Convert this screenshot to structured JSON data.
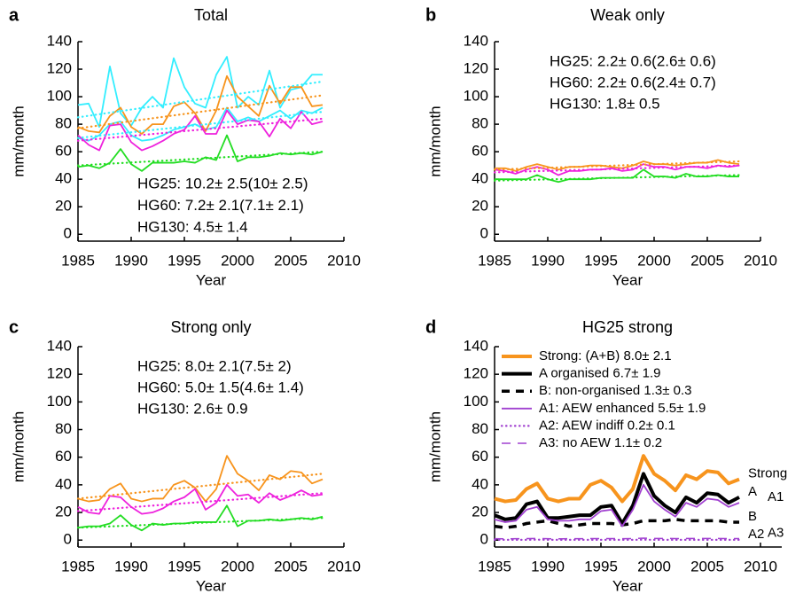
{
  "chart_data": [
    {
      "type": "line",
      "label": "a",
      "title": "Total",
      "xlabel": "Year",
      "ylabel": "mm/month",
      "x": [
        1985,
        1986,
        1987,
        1988,
        1989,
        1990,
        1991,
        1992,
        1993,
        1994,
        1995,
        1996,
        1997,
        1998,
        1999,
        2000,
        2001,
        2002,
        2003,
        2004,
        2005,
        2006,
        2007,
        2008
      ],
      "xlim": [
        1985,
        2010
      ],
      "xticks": [
        1985,
        1990,
        1995,
        2000,
        2005,
        2010
      ],
      "ylim": [
        -5,
        140
      ],
      "yticks": [
        0,
        20,
        40,
        60,
        80,
        100,
        120,
        140
      ],
      "legend_lines": false,
      "series": [
        {
          "color": "#33eeff",
          "style": "solid",
          "values": [
            94,
            95,
            78,
            122,
            88,
            79,
            92,
            100,
            92,
            128,
            107,
            95,
            92,
            116,
            129,
            92,
            100,
            94,
            119,
            92,
            105,
            107,
            116,
            116
          ]
        },
        {
          "color": "#33eeff",
          "style": "solid",
          "values": [
            70,
            68,
            72,
            80,
            82,
            72,
            68,
            69,
            72,
            76,
            78,
            80,
            76,
            78,
            92,
            82,
            85,
            82,
            86,
            90,
            84,
            90,
            88,
            92
          ]
        },
        {
          "name": "HG25: 10.2± 2.5(10± 2.5)",
          "color": "#f7941d",
          "style": "solid",
          "values": [
            78,
            75,
            74,
            86,
            92,
            78,
            73,
            80,
            80,
            93,
            96,
            88,
            75,
            90,
            115,
            100,
            93,
            86,
            108,
            95,
            107,
            107,
            93,
            94
          ]
        },
        {
          "name": "HG60: 7.2± 2.1(7.1± 2.1)",
          "color": "#ee22dd",
          "style": "solid",
          "values": [
            72,
            65,
            61,
            79,
            80,
            67,
            61,
            64,
            68,
            73,
            76,
            86,
            73,
            73,
            90,
            80,
            83,
            82,
            71,
            84,
            77,
            89,
            80,
            82
          ]
        },
        {
          "name": "HG130: 4.5± 1.4",
          "color": "#22dd22",
          "style": "solid",
          "values": [
            49,
            50,
            48,
            52,
            62,
            51,
            46,
            52,
            52,
            52,
            53,
            52,
            56,
            54,
            72,
            53,
            56,
            56,
            57,
            59,
            58,
            59,
            58,
            60
          ]
        },
        {
          "color": "#33eeff",
          "style": "dotted",
          "x": [
            1985,
            2008
          ],
          "values": [
            85,
            111
          ]
        },
        {
          "color": "#33eeff",
          "style": "dotted",
          "x": [
            1985,
            2008
          ],
          "values": [
            70,
            89
          ]
        },
        {
          "color": "#f7941d",
          "style": "dotted",
          "x": [
            1985,
            2008
          ],
          "values": [
            77,
            101
          ]
        },
        {
          "color": "#ee22dd",
          "style": "dotted",
          "x": [
            1985,
            2008
          ],
          "values": [
            68,
            84
          ]
        },
        {
          "color": "#22dd22",
          "style": "dotted",
          "x": [
            1985,
            2008
          ],
          "values": [
            50,
            60
          ]
        }
      ]
    },
    {
      "type": "line",
      "label": "b",
      "title": "Weak only",
      "xlabel": "Year",
      "ylabel": "mm/month",
      "x": [
        1985,
        1986,
        1987,
        1988,
        1989,
        1990,
        1991,
        1992,
        1993,
        1994,
        1995,
        1996,
        1997,
        1998,
        1999,
        2000,
        2001,
        2002,
        2003,
        2004,
        2005,
        2006,
        2007,
        2008
      ],
      "xlim": [
        1985,
        2010
      ],
      "xticks": [
        1985,
        1990,
        1995,
        2000,
        2005,
        2010
      ],
      "ylim": [
        -5,
        140
      ],
      "yticks": [
        0,
        20,
        40,
        60,
        80,
        100,
        120,
        140
      ],
      "legend_lines": false,
      "series": [
        {
          "name": "HG25: 2.2± 0.6(2.6± 0.6)",
          "color": "#f7941d",
          "style": "solid",
          "values": [
            48,
            48,
            46,
            49,
            51,
            49,
            47,
            49,
            49,
            50,
            50,
            49,
            48,
            50,
            53,
            51,
            51,
            50,
            51,
            52,
            52,
            54,
            52,
            51
          ]
        },
        {
          "name": "HG60: 2.2± 0.6(2.4± 0.7)",
          "color": "#ee22dd",
          "style": "solid",
          "values": [
            47,
            46,
            44,
            47,
            49,
            47,
            43,
            46,
            46,
            47,
            47,
            48,
            46,
            47,
            51,
            49,
            49,
            47,
            49,
            49,
            48,
            50,
            49,
            50
          ]
        },
        {
          "name": "HG130: 1.8± 0.5",
          "color": "#22dd22",
          "style": "solid",
          "values": [
            40,
            40,
            40,
            40,
            43,
            40,
            38,
            40,
            40,
            40,
            41,
            41,
            41,
            41,
            47,
            42,
            42,
            41,
            44,
            42,
            42,
            43,
            42,
            42
          ]
        },
        {
          "color": "#f7941d",
          "style": "dotted",
          "x": [
            1985,
            2008
          ],
          "values": [
            47,
            53
          ]
        },
        {
          "color": "#ee22dd",
          "style": "dotted",
          "x": [
            1985,
            2008
          ],
          "values": [
            45,
            50
          ]
        },
        {
          "color": "#22dd22",
          "style": "dotted",
          "x": [
            1985,
            2008
          ],
          "values": [
            39,
            43
          ]
        }
      ]
    },
    {
      "type": "line",
      "label": "c",
      "title": "Strong only",
      "xlabel": "Year",
      "ylabel": "mm/month",
      "x": [
        1985,
        1986,
        1987,
        1988,
        1989,
        1990,
        1991,
        1992,
        1993,
        1994,
        1995,
        1996,
        1997,
        1998,
        1999,
        2000,
        2001,
        2002,
        2003,
        2004,
        2005,
        2006,
        2007,
        2008
      ],
      "xlim": [
        1985,
        2010
      ],
      "xticks": [
        1985,
        1990,
        1995,
        2000,
        2005,
        2010
      ],
      "ylim": [
        -5,
        140
      ],
      "yticks": [
        0,
        20,
        40,
        60,
        80,
        100,
        120,
        140
      ],
      "legend_lines": false,
      "series": [
        {
          "name": "HG25: 8.0± 2.1(7.5± 2)",
          "color": "#f7941d",
          "style": "solid",
          "values": [
            30,
            28,
            29,
            37,
            41,
            30,
            28,
            30,
            30,
            40,
            43,
            38,
            28,
            37,
            61,
            48,
            43,
            36,
            47,
            44,
            50,
            49,
            41,
            44
          ]
        },
        {
          "name": "HG60: 5.0± 1.5(4.6± 1.4)",
          "color": "#ee22dd",
          "style": "solid",
          "values": [
            24,
            20,
            19,
            32,
            31,
            24,
            19,
            20,
            23,
            28,
            31,
            37,
            22,
            27,
            40,
            32,
            33,
            27,
            34,
            29,
            32,
            36,
            32,
            33
          ]
        },
        {
          "name": "HG130: 2.6± 0.9",
          "color": "#22dd22",
          "style": "solid",
          "values": [
            9,
            10,
            10,
            12,
            18,
            11,
            7,
            12,
            11,
            12,
            12,
            13,
            13,
            13,
            25,
            10,
            14,
            14,
            15,
            14,
            15,
            16,
            15,
            17
          ]
        },
        {
          "color": "#f7941d",
          "style": "dotted",
          "x": [
            1985,
            2008
          ],
          "values": [
            30,
            48
          ]
        },
        {
          "color": "#ee22dd",
          "style": "dotted",
          "x": [
            1985,
            2008
          ],
          "values": [
            21,
            34
          ]
        },
        {
          "color": "#22dd22",
          "style": "dotted",
          "x": [
            1985,
            2008
          ],
          "values": [
            9,
            16
          ]
        }
      ]
    },
    {
      "type": "line",
      "label": "d",
      "title": "HG25 strong",
      "xlabel": "Year",
      "ylabel": "mm/month",
      "x": [
        1985,
        1986,
        1987,
        1988,
        1989,
        1990,
        1991,
        1992,
        1993,
        1994,
        1995,
        1996,
        1997,
        1998,
        1999,
        2000,
        2001,
        2002,
        2003,
        2004,
        2005,
        2006,
        2007,
        2008
      ],
      "xlim": [
        1985,
        2012
      ],
      "xticks": [
        1985,
        1990,
        1995,
        2000,
        2005,
        2010
      ],
      "ylim": [
        -5,
        140
      ],
      "yticks": [
        0,
        20,
        40,
        60,
        80,
        100,
        120,
        140
      ],
      "legend_lines": true,
      "series": [
        {
          "name": "Strong: (A+B) 8.0± 2.1",
          "end_label": "Strong",
          "color": "#f7941d",
          "style": "thick",
          "values": [
            30,
            28,
            29,
            37,
            41,
            30,
            28,
            30,
            30,
            40,
            43,
            38,
            28,
            37,
            61,
            48,
            43,
            36,
            47,
            44,
            50,
            49,
            41,
            44
          ]
        },
        {
          "name": "A organised 6.7± 1.9",
          "end_label": "A",
          "color": "#000000",
          "style": "thick",
          "values": [
            18,
            15,
            16,
            26,
            28,
            16,
            16,
            17,
            18,
            18,
            24,
            25,
            12,
            25,
            48,
            32,
            25,
            20,
            31,
            27,
            34,
            33,
            27,
            31
          ]
        },
        {
          "name": "B: non-organised 1.3± 0.3",
          "end_label": "B",
          "color": "#000000",
          "style": "thickdash",
          "values": [
            10,
            9,
            10,
            12,
            13,
            14,
            12,
            10,
            11,
            12,
            12,
            12,
            11,
            12,
            14,
            14,
            14,
            15,
            14,
            14,
            14,
            14,
            13,
            13
          ]
        },
        {
          "name": "A1: AEW enhanced 5.5± 1.9",
          "end_label": "A1",
          "color": "#a040d0",
          "style": "solid",
          "values": [
            15,
            13,
            14,
            22,
            24,
            15,
            14,
            14,
            15,
            15,
            21,
            22,
            10,
            22,
            40,
            28,
            22,
            17,
            27,
            24,
            30,
            29,
            24,
            27
          ]
        },
        {
          "name": "A2: AEW indiff 0.2± 0.1",
          "end_label": "A2",
          "color": "#a040d0",
          "style": "dotted",
          "values": [
            0.2,
            0.2,
            0.2,
            0.2,
            0.3,
            0.2,
            0.2,
            0.2,
            0.2,
            0.2,
            0.2,
            0.2,
            0.2,
            0.2,
            0.3,
            0.2,
            0.2,
            0.2,
            0.2,
            0.2,
            0.2,
            0.2,
            0.2,
            0.2
          ]
        },
        {
          "name": "A3: no AEW 1.1± 0.2",
          "end_label": "A3",
          "color": "#a040d0",
          "style": "dashed",
          "values": [
            1.0,
            0.9,
            1.0,
            1.1,
            1.2,
            1.0,
            0.9,
            1.0,
            1.0,
            1.1,
            1.1,
            1.1,
            1.0,
            1.1,
            1.4,
            1.2,
            1.2,
            1.1,
            1.2,
            1.2,
            1.2,
            1.2,
            1.1,
            1.1
          ]
        }
      ]
    }
  ]
}
